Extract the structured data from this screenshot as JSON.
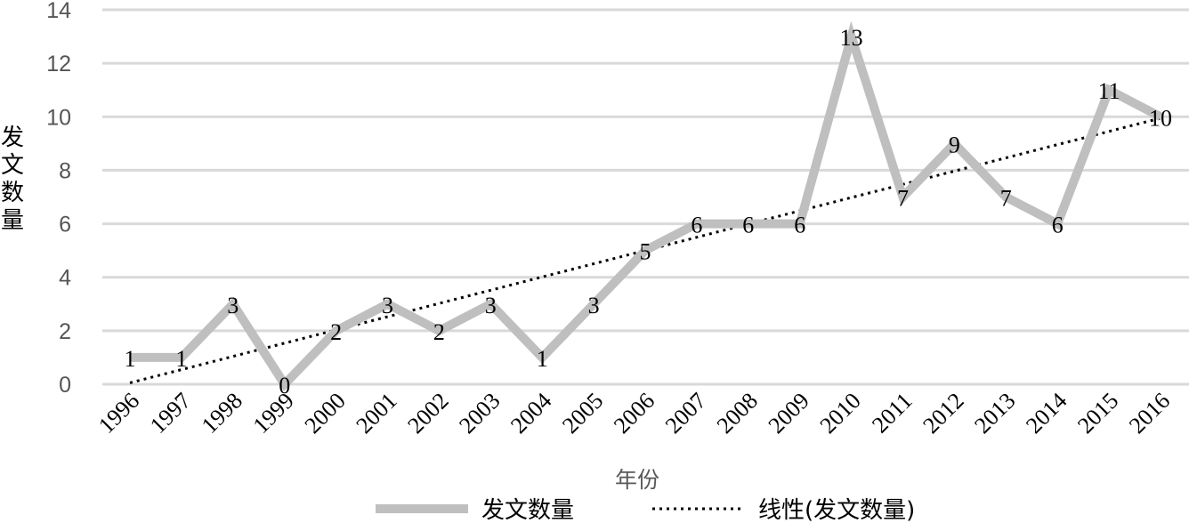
{
  "chart_data": {
    "type": "line",
    "title": "",
    "xlabel": "年份",
    "ylabel": "发文数量",
    "x": [
      "1996",
      "1997",
      "1998",
      "1999",
      "2000",
      "2001",
      "2002",
      "2003",
      "2004",
      "2005",
      "2006",
      "2007",
      "2008",
      "2009",
      "2010",
      "2011",
      "2012",
      "2013",
      "2014",
      "2015",
      "2016"
    ],
    "series": [
      {
        "name": "发文数量",
        "values": [
          1,
          1,
          3,
          0,
          2,
          3,
          2,
          3,
          1,
          3,
          5,
          6,
          6,
          6,
          13,
          7,
          9,
          7,
          6,
          11,
          10
        ],
        "color": "#bfbfbf",
        "style": "solid",
        "data_labels": true
      },
      {
        "name": "线性(发文数量)",
        "trendline": "linear",
        "color": "#000000",
        "style": "dotted"
      }
    ],
    "ylim": [
      0,
      14
    ],
    "yticks": [
      0,
      2,
      4,
      6,
      8,
      10,
      12,
      14
    ],
    "grid": "horizontal",
    "legend": "bottom-center"
  }
}
